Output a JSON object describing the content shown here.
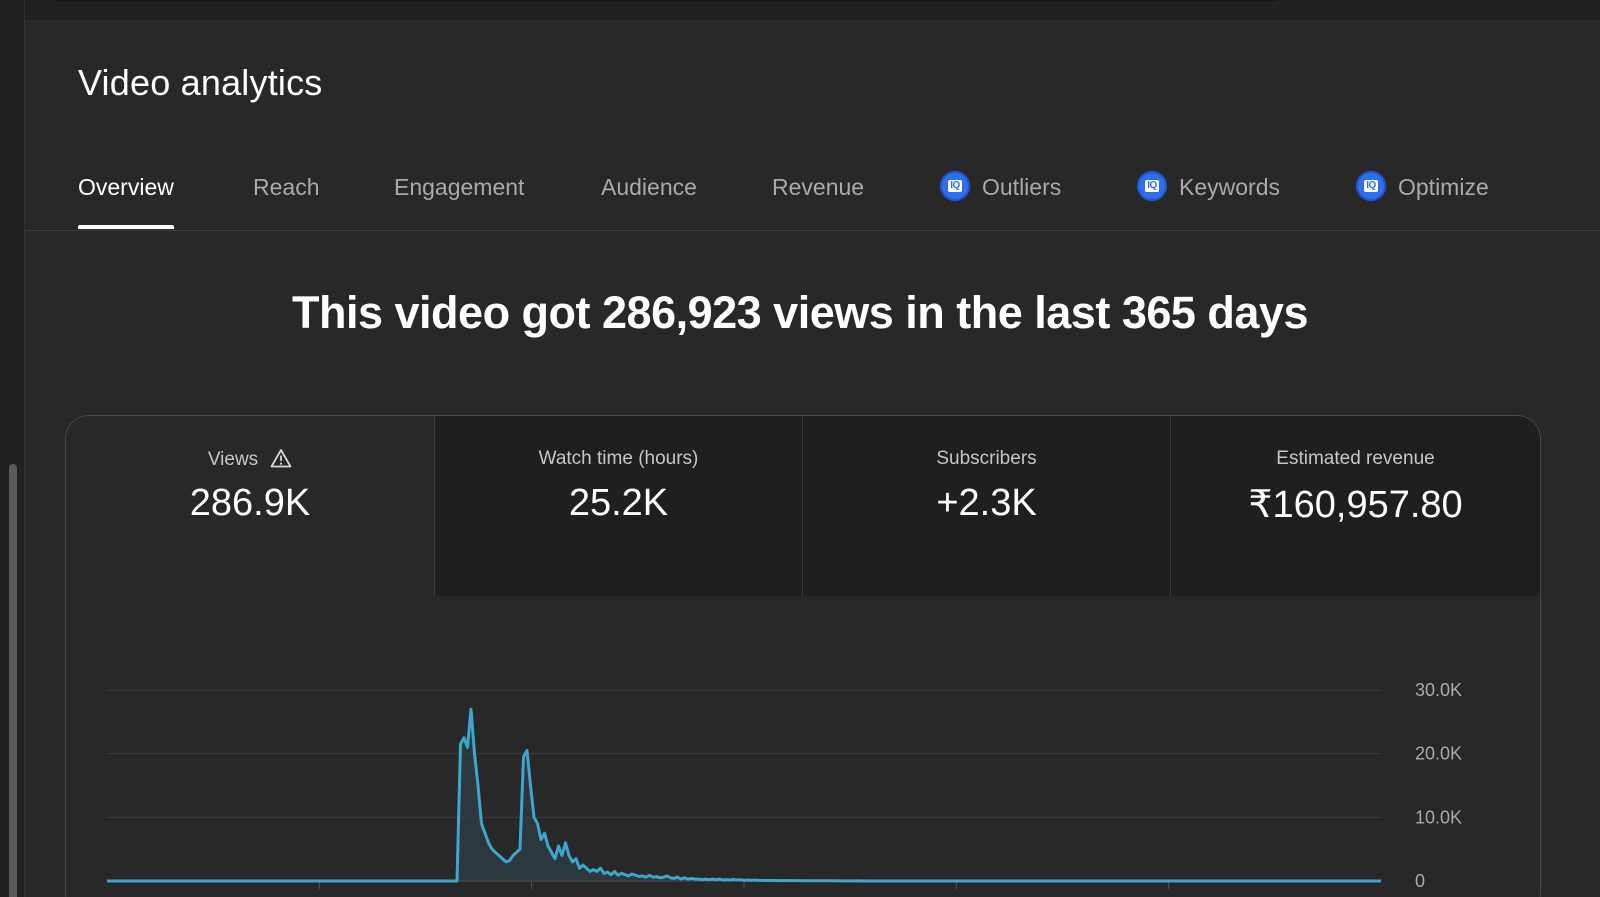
{
  "header": {
    "title": "Video analytics"
  },
  "tabs": [
    {
      "label": "Overview",
      "active": true,
      "iq": false
    },
    {
      "label": "Reach",
      "active": false,
      "iq": false
    },
    {
      "label": "Engagement",
      "active": false,
      "iq": false
    },
    {
      "label": "Audience",
      "active": false,
      "iq": false
    },
    {
      "label": "Revenue",
      "active": false,
      "iq": false
    },
    {
      "label": "Outliers",
      "active": false,
      "iq": true
    },
    {
      "label": "Keywords",
      "active": false,
      "iq": true
    },
    {
      "label": "Optimize",
      "active": false,
      "iq": true
    }
  ],
  "iq_badge_text": "IQ",
  "headline": "This video got 286,923 views in the last 365 days",
  "metrics": [
    {
      "label": "Views",
      "value": "286.9K",
      "warning": true,
      "selected": true
    },
    {
      "label": "Watch time (hours)",
      "value": "25.2K",
      "warning": false,
      "selected": false
    },
    {
      "label": "Subscribers",
      "value": "+2.3K",
      "warning": false,
      "selected": false
    },
    {
      "label": "Estimated revenue",
      "value": "₹160,957.80",
      "warning": false,
      "selected": false
    }
  ],
  "icons": {
    "warning": "warning-triangle-icon",
    "iq": "iq-badge-icon"
  },
  "colors": {
    "accent": "#3ea6cc",
    "iq_badge": "#2e6ff2",
    "background": "#282828"
  },
  "chart_data": {
    "type": "line",
    "y_tick_labels": [
      "0",
      "10.0K",
      "20.0K",
      "30.0K"
    ],
    "y_ticks": [
      0,
      10000,
      20000,
      30000
    ],
    "ylim": [
      0,
      30000
    ],
    "x_segments": 6,
    "values": [
      0,
      0,
      0,
      0,
      0,
      0,
      0,
      0,
      0,
      0,
      0,
      0,
      0,
      0,
      0,
      0,
      0,
      0,
      0,
      0,
      0,
      0,
      0,
      0,
      0,
      0,
      0,
      0,
      0,
      0,
      0,
      0,
      0,
      0,
      0,
      0,
      0,
      0,
      0,
      0,
      0,
      0,
      0,
      0,
      0,
      0,
      0,
      0,
      0,
      0,
      0,
      0,
      0,
      0,
      0,
      0,
      0,
      0,
      0,
      0,
      0,
      0,
      0,
      0,
      0,
      0,
      0,
      0,
      0,
      0,
      0,
      0,
      0,
      0,
      0,
      0,
      0,
      0,
      0,
      0,
      0,
      0,
      0,
      0,
      0,
      0,
      0,
      0,
      0,
      0,
      0,
      0,
      0,
      0,
      0,
      0,
      0,
      0,
      0,
      0,
      0,
      21500,
      22500,
      21000,
      27000,
      20000,
      15000,
      9000,
      7500,
      6000,
      5000,
      4500,
      4000,
      3500,
      3000,
      3200,
      4000,
      4500,
      5000,
      19500,
      20500,
      15000,
      10000,
      9000,
      6500,
      7500,
      5500,
      4500,
      3500,
      5500,
      4000,
      6000,
      4000,
      3000,
      3500,
      2000,
      2500,
      2000,
      1500,
      1800,
      1500,
      2000,
      1200,
      1400,
      1000,
      1500,
      900,
      1200,
      1000,
      800,
      1100,
      900,
      700,
      800,
      600,
      900,
      600,
      700,
      500,
      600,
      800,
      500,
      400,
      600,
      300,
      500,
      300,
      400,
      300,
      300,
      200,
      300,
      200,
      300,
      200,
      300,
      150,
      200,
      150,
      250,
      150,
      200,
      100,
      150,
      100,
      150,
      100,
      100,
      80,
      100,
      80,
      80,
      60,
      80,
      50,
      60,
      50,
      50,
      40,
      50,
      40,
      40,
      30,
      40,
      30,
      30,
      30,
      30,
      20,
      30,
      20,
      20,
      20,
      20,
      20,
      20,
      10,
      20,
      10,
      10,
      10,
      10,
      10,
      10,
      10,
      10,
      0,
      0,
      0,
      0,
      0,
      0,
      0,
      0,
      0,
      0,
      0,
      0,
      0,
      0,
      0,
      0,
      0,
      0,
      0,
      0,
      0,
      0,
      0,
      0,
      0,
      0,
      0,
      0,
      0,
      0,
      0,
      0,
      0,
      0,
      0,
      0,
      0,
      0,
      0,
      0,
      0,
      0,
      0,
      0,
      0,
      0,
      0,
      0,
      0,
      0,
      0,
      0,
      0,
      0,
      0,
      0,
      0,
      0,
      0,
      0,
      0,
      0,
      0,
      0,
      0,
      0,
      0,
      0,
      0,
      0,
      0,
      0,
      0,
      0,
      0,
      0,
      0,
      0,
      0,
      0,
      0,
      0,
      0,
      0,
      0,
      0,
      0,
      0,
      0,
      0,
      0,
      0,
      0,
      0,
      0,
      0,
      0,
      0,
      0,
      0,
      0,
      0,
      0,
      0,
      0,
      0,
      0,
      0,
      0,
      0,
      0,
      0,
      0,
      0,
      0,
      0,
      0,
      0,
      0,
      0,
      0,
      0,
      0,
      0,
      0,
      0,
      0,
      0,
      0,
      0,
      0,
      0,
      0,
      0,
      0,
      0,
      0,
      0,
      0
    ]
  }
}
